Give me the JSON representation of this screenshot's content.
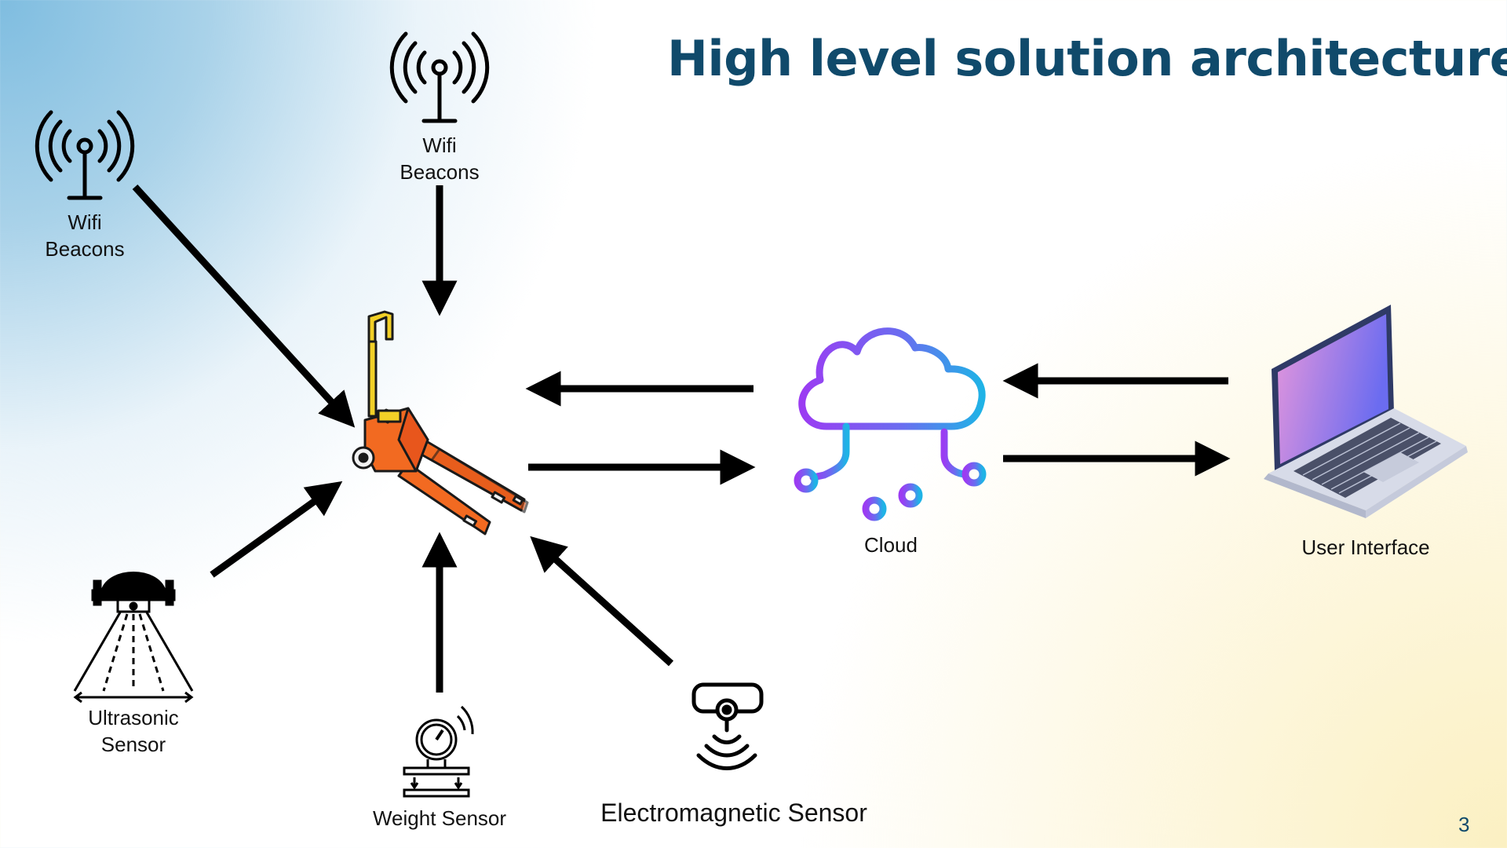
{
  "title": "High level solution architecture",
  "page_number": "3",
  "nodes": {
    "wifi_left": {
      "line1": "Wifi",
      "line2": "Beacons"
    },
    "wifi_top": {
      "line1": "Wifi",
      "line2": "Beacons"
    },
    "ultrasonic": {
      "line1": "Ultrasonic",
      "line2": "Sensor"
    },
    "weight": {
      "label": "Weight Sensor"
    },
    "electromagnetic": {
      "label": "Electromagnetic Sensor"
    },
    "cloud": {
      "label": "Cloud"
    },
    "user_interface": {
      "label": "User Interface"
    },
    "pallet_jack": {}
  },
  "colors": {
    "title": "#104a6b",
    "arrow": "#000000",
    "cloud_gradient_start": "#9b3cf2",
    "cloud_gradient_end": "#1fb3e6",
    "jack_orange": "#f26a21",
    "jack_yellow": "#f2d027",
    "laptop_screen_start": "#e596dc",
    "laptop_screen_end": "#6b6cf0"
  },
  "icons": [
    "wifi-antenna-icon",
    "pallet-jack-icon",
    "cloud-network-icon",
    "laptop-icon",
    "ultrasonic-sensor-icon",
    "weight-sensor-icon",
    "electromagnetic-sensor-icon"
  ]
}
